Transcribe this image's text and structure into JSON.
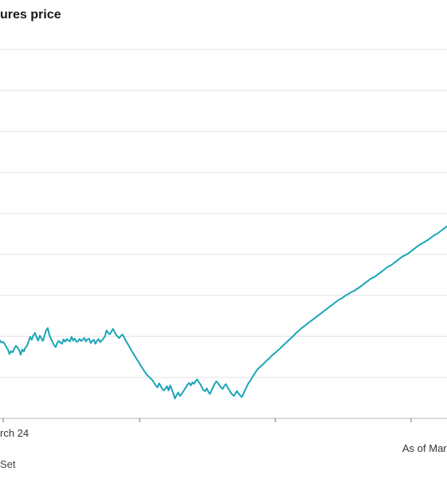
{
  "header": {
    "title": "ures price"
  },
  "footer": {
    "note": "As of Marc",
    "source": "Set"
  },
  "chart_data": {
    "type": "line",
    "title": "ures price",
    "x_tick_labels": [
      "rch 24",
      "",
      "",
      ""
    ],
    "grid": true,
    "line_color": "#1aa6b7",
    "y_scale_relative": [
      0,
      1000
    ],
    "series": [
      {
        "values": [
          290,
          284,
          296,
          300,
          286,
          298,
          302,
          292,
          296,
          285,
          270,
          258,
          235,
          250,
          244,
          262,
          276,
          268,
          255,
          232,
          258,
          248,
          268,
          275,
          298,
          320,
          306,
          328,
          340,
          318,
          302,
          326,
          314,
          300,
          328,
          352,
          364,
          332,
          312,
          296,
          280,
          270,
          290,
          300,
          292,
          286,
          308,
          296,
          310,
          302,
          298,
          320,
          302,
          312,
          296,
          298,
          310,
          300,
          305,
          315,
          298,
          308,
          312,
          290,
          300,
          306,
          286,
          300,
          310,
          295,
          302,
          312,
          322,
          352,
          340,
          333,
          346,
          360,
          345,
          330,
          322,
          314,
          325,
          332,
          318,
          302,
          290,
          276,
          262,
          248,
          235,
          222,
          210,
          198,
          185,
          172,
          160,
          148,
          136,
          128,
          120,
          112,
          105,
          90,
          80,
          70,
          90,
          78,
          62,
          55,
          64,
          76,
          55,
          80,
          60,
          40,
          15,
          32,
          45,
          28,
          35,
          48,
          60,
          72,
          85,
          92,
          80,
          95,
          88,
          102,
          110,
          96,
          85,
          70,
          55,
          52,
          65,
          48,
          38,
          55,
          72,
          88,
          100,
          92,
          80,
          70,
          62,
          78,
          86,
          72,
          58,
          45,
          35,
          28,
          40,
          52,
          40,
          30,
          22,
          38,
          55,
          72,
          88,
          100,
          112,
          125,
          138,
          150,
          160,
          168,
          175,
          182,
          190,
          198,
          206,
          212,
          220,
          228,
          235,
          242,
          248,
          255,
          262,
          270,
          278,
          285,
          292,
          300,
          308,
          315,
          322,
          330,
          338,
          345,
          352,
          360,
          366,
          372,
          378,
          384,
          390,
          396,
          402,
          408,
          414,
          420,
          426,
          432,
          438,
          444,
          450,
          456,
          462,
          468,
          474,
          480,
          486,
          492,
          498,
          504,
          508,
          512,
          518,
          524,
          528,
          532,
          538,
          542,
          546,
          550,
          556,
          560,
          566,
          572,
          578,
          584,
          590,
          596,
          602,
          608,
          612,
          616,
          620,
          626,
          632,
          638,
          644,
          650,
          656,
          662,
          668,
          672,
          676,
          682,
          688,
          694,
          700,
          706,
          712,
          718,
          722,
          726,
          730,
          736,
          742,
          748,
          754,
          760,
          766,
          772,
          778,
          782,
          786,
          790,
          796,
          800,
          806,
          812,
          818,
          824,
          828,
          832,
          838,
          844,
          850,
          856,
          862,
          868,
          874,
          880
        ]
      }
    ]
  }
}
